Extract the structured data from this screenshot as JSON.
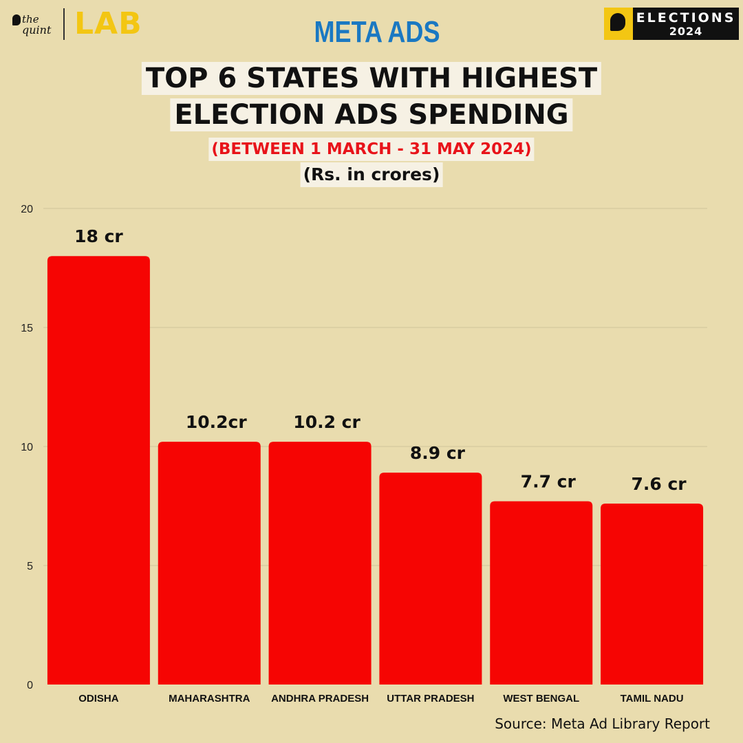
{
  "brand": {
    "left_the": "the",
    "left_quint": "quint",
    "lab": "LAB",
    "right_line1": "ELECTIONS",
    "right_line2": "2024"
  },
  "header": {
    "kicker": "META ADS",
    "title_line1": "TOP 6 STATES WITH HIGHEST",
    "title_line2": "ELECTION ADS SPENDING",
    "date_range": "(BETWEEN 1 MARCH - 31 MAY 2024)",
    "unit": "(Rs. in crores)"
  },
  "footer": {
    "source": "Source: Meta Ad Library Report"
  },
  "colors": {
    "background": "#e9dcae",
    "bar": "#f60503",
    "kicker": "#1a78c2",
    "date_range": "#e8131a",
    "brand_yellow": "#f3c613"
  },
  "chart_data": {
    "type": "bar",
    "categories": [
      "ODISHA",
      "MAHARASHTRA",
      "ANDHRA PRADESH",
      "UTTAR PRADESH",
      "WEST BENGAL",
      "TAMIL NADU"
    ],
    "values": [
      18,
      10.2,
      10.2,
      8.9,
      7.7,
      7.6
    ],
    "data_labels": [
      "18 cr",
      "10.2cr",
      "10.2 cr",
      "8.9 cr",
      "7.7 cr",
      "7.6 cr"
    ],
    "yticks": [
      0,
      5,
      10,
      15,
      20
    ],
    "ylim": [
      0,
      20
    ],
    "grid": true,
    "legend": "none"
  }
}
